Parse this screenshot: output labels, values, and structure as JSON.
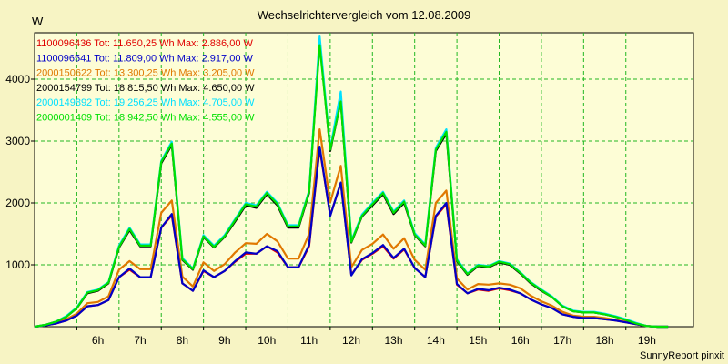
{
  "chart_data": {
    "type": "line",
    "title": "Wechselrichtervergleich vom 12.08.2009",
    "ylabel": "W",
    "xlabel": "",
    "footer": "SunnyReport pinxit",
    "ylim": [
      0,
      4750
    ],
    "xlim": [
      5.0,
      20.6
    ],
    "y_ticks": [
      1000,
      2000,
      3000,
      4000
    ],
    "x_ticks": [
      {
        "label": "6h",
        "value": 6
      },
      {
        "label": "7h",
        "value": 7
      },
      {
        "label": "8h",
        "value": 8
      },
      {
        "label": "9h",
        "value": 9
      },
      {
        "label": "10h",
        "value": 10
      },
      {
        "label": "11h",
        "value": 11
      },
      {
        "label": "12h",
        "value": 12
      },
      {
        "label": "13h",
        "value": 13
      },
      {
        "label": "14h",
        "value": 14
      },
      {
        "label": "15h",
        "value": 15
      },
      {
        "label": "16h",
        "value": 16
      },
      {
        "label": "17h",
        "value": 17
      },
      {
        "label": "18h",
        "value": 18
      },
      {
        "label": "19h",
        "value": 19
      }
    ],
    "grid": true,
    "legend_position": "top-left",
    "x": [
      5.0,
      5.25,
      5.5,
      5.75,
      6.0,
      6.25,
      6.5,
      6.75,
      7.0,
      7.25,
      7.5,
      7.75,
      8.0,
      8.25,
      8.5,
      8.75,
      9.0,
      9.25,
      9.5,
      9.75,
      10.0,
      10.25,
      10.5,
      10.75,
      11.0,
      11.25,
      11.5,
      11.75,
      12.0,
      12.25,
      12.5,
      12.75,
      13.0,
      13.25,
      13.5,
      13.75,
      14.0,
      14.25,
      14.5,
      14.75,
      15.0,
      15.25,
      15.5,
      15.75,
      16.0,
      16.25,
      16.5,
      16.75,
      17.0,
      17.25,
      17.5,
      17.75,
      18.0,
      18.25,
      18.5,
      18.75,
      19.0,
      19.25,
      19.5,
      19.75,
      20.0
    ],
    "series": [
      {
        "name": "1100096436 Tot: 11.650,25 Wh Max: 2.886,00 W",
        "color": "#e00000",
        "values": [
          0,
          20,
          50,
          100,
          180,
          330,
          350,
          430,
          800,
          920,
          800,
          800,
          1600,
          1800,
          700,
          580,
          900,
          800,
          900,
          1050,
          1180,
          1180,
          1300,
          1200,
          960,
          960,
          1300,
          2880,
          1800,
          2320,
          840,
          1080,
          1180,
          1300,
          1100,
          1250,
          950,
          800,
          1780,
          1980,
          680,
          540,
          600,
          580,
          620,
          590,
          540,
          440,
          360,
          300,
          200,
          160,
          140,
          140,
          120,
          100,
          70,
          40,
          10,
          0,
          0
        ]
      },
      {
        "name": "1100096541 Tot: 11.809,00 Wh Max: 2.917,00 W",
        "color": "#0000c8",
        "values": [
          0,
          20,
          50,
          100,
          180,
          330,
          350,
          430,
          800,
          940,
          800,
          800,
          1600,
          1820,
          700,
          580,
          910,
          800,
          900,
          1060,
          1200,
          1180,
          1300,
          1220,
          960,
          960,
          1320,
          2910,
          1790,
          2330,
          830,
          1090,
          1190,
          1320,
          1110,
          1260,
          950,
          800,
          1790,
          2000,
          690,
          540,
          610,
          590,
          630,
          600,
          540,
          440,
          360,
          300,
          200,
          160,
          140,
          140,
          120,
          100,
          70,
          40,
          10,
          0,
          0
        ]
      },
      {
        "name": "2000150622 Tot: 13.300,25 Wh Max: 3.205,00 W",
        "color": "#e07800",
        "values": [
          0,
          20,
          60,
          120,
          210,
          380,
          400,
          490,
          920,
          1060,
          930,
          930,
          1840,
          2040,
          810,
          650,
          1040,
          900,
          1010,
          1200,
          1350,
          1340,
          1500,
          1380,
          1100,
          1100,
          1500,
          3190,
          2010,
          2600,
          960,
          1240,
          1340,
          1490,
          1260,
          1430,
          1080,
          920,
          2000,
          2200,
          780,
          600,
          690,
          680,
          700,
          680,
          620,
          500,
          410,
          340,
          240,
          180,
          160,
          160,
          140,
          110,
          80,
          40,
          10,
          0,
          0
        ]
      },
      {
        "name": "2000154799 Tot: 18.815,50 Wh Max: 4.650,00 W",
        "color": "#000000",
        "values": [
          0,
          30,
          80,
          160,
          300,
          540,
          580,
          700,
          1280,
          1560,
          1300,
          1300,
          2640,
          2940,
          1080,
          920,
          1450,
          1280,
          1450,
          1700,
          1960,
          1920,
          2140,
          1960,
          1600,
          1600,
          2160,
          4620,
          2840,
          3640,
          1360,
          1780,
          1960,
          2140,
          1820,
          2000,
          1480,
          1300,
          2840,
          3120,
          1060,
          840,
          980,
          960,
          1040,
          1000,
          860,
          700,
          580,
          480,
          330,
          250,
          230,
          230,
          200,
          160,
          110,
          50,
          10,
          0,
          0
        ]
      },
      {
        "name": "2000149892 Tot: 19.256,25 Wh Max: 4.705,00 W",
        "color": "#00e0ff",
        "values": [
          0,
          30,
          80,
          170,
          310,
          560,
          600,
          720,
          1310,
          1600,
          1330,
          1330,
          2680,
          2990,
          1110,
          940,
          1480,
          1310,
          1480,
          1740,
          2000,
          1960,
          2180,
          2000,
          1640,
          1640,
          2200,
          4690,
          2880,
          3800,
          1390,
          1810,
          2000,
          2180,
          1860,
          2040,
          1510,
          1330,
          2890,
          3190,
          1090,
          860,
          1000,
          980,
          1060,
          1020,
          880,
          720,
          600,
          490,
          340,
          260,
          240,
          240,
          210,
          170,
          120,
          60,
          10,
          0,
          0
        ]
      },
      {
        "name": "2000001409 Tot: 18.942,50 Wh Max: 4.555,00 W",
        "color": "#00e000",
        "values": [
          0,
          30,
          80,
          160,
          300,
          550,
          590,
          710,
          1290,
          1580,
          1310,
          1310,
          2660,
          2960,
          1090,
          930,
          1460,
          1290,
          1460,
          1720,
          1980,
          1940,
          2160,
          1980,
          1620,
          1620,
          2180,
          4550,
          2860,
          3640,
          1370,
          1790,
          1980,
          2160,
          1840,
          2020,
          1490,
          1310,
          2860,
          3150,
          1070,
          850,
          990,
          970,
          1050,
          1010,
          870,
          710,
          590,
          480,
          330,
          250,
          230,
          230,
          200,
          160,
          110,
          50,
          10,
          0,
          0
        ]
      }
    ]
  }
}
